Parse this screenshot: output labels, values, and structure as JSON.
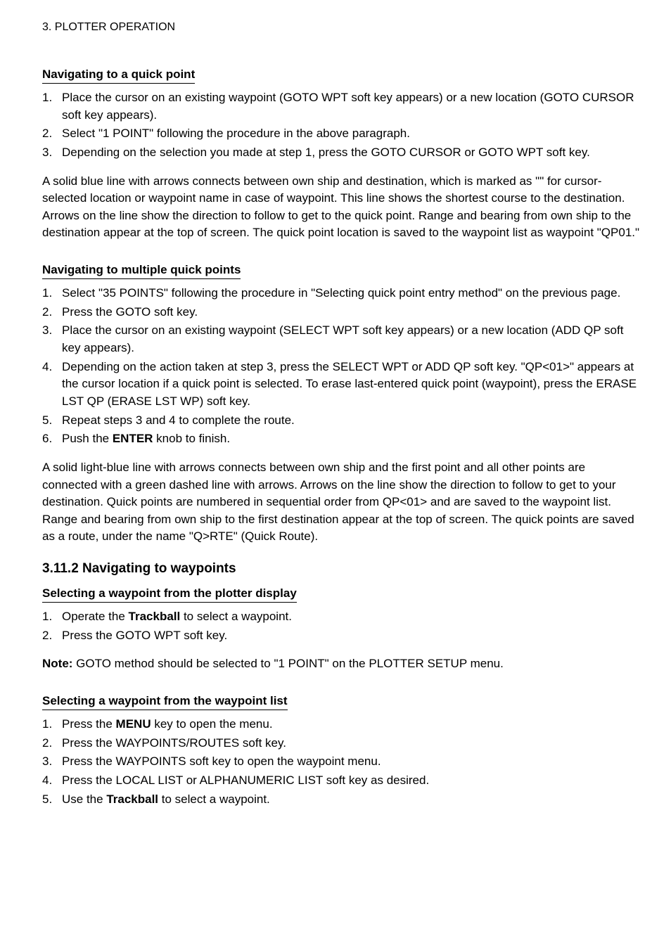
{
  "header": {
    "chapter": "3. PLOTTER OPERATION"
  },
  "sec1": {
    "heading": "Navigating to a quick point",
    "items": [
      "Place the cursor on an existing waypoint (GOTO WPT soft key appears) or a new location (GOTO CURSOR soft key appears).",
      "Select \"1 POINT\" following the procedure in the above paragraph.",
      "Depending on the selection you made at step 1, press the GOTO CURSOR or GOTO WPT soft key."
    ],
    "para": "A solid blue line with arrows connects between own ship and destination, which is marked as \"<QP01>\" for cursor-selected location or waypoint name in case of waypoint. This line shows the shortest course to the destination. Arrows on the line show the direction to follow to get to the quick point. Range and bearing from own ship to the destination appear at the top of screen. The quick point location is saved to the waypoint list as waypoint \"QP01.\""
  },
  "sec2": {
    "heading": "Navigating to multiple quick points",
    "items": [
      "Select \"35 POINTS\" following the procedure in \"Selecting quick point entry method\" on the previous page.",
      "Press the GOTO soft key.",
      "Place the cursor on an existing waypoint (SELECT WPT soft key appears) or a new location (ADD QP soft key appears).",
      "Depending on the action taken at step 3, press the SELECT WPT or ADD QP soft key. \"QP<01>\" appears at the cursor location if a quick point is selected. To erase last-entered quick point (waypoint), press the ERASE LST QP (ERASE LST WP) soft key.",
      "Repeat steps 3 and 4 to complete the route.",
      "Push the ENTER knob to finish."
    ],
    "para": "A solid light-blue line with arrows connects between own ship and the first point and all other points are connected with a green dashed line with arrows. Arrows on the line show the direction to follow to get to your destination. Quick points are numbered in sequential order from QP<01> and are saved to the waypoint list. Range and bearing from own ship to the first destination appear at the top of screen. The quick points are saved as a route, under the name \"Q>RTE\" (Quick Route)."
  },
  "sec3": {
    "title": "3.11.2 Navigating to waypoints",
    "sub1": {
      "heading": "Selecting a waypoint from the plotter display",
      "items": [
        "Operate the Trackball to select a waypoint.",
        "Press the GOTO WPT soft key."
      ],
      "note_label": "Note: ",
      "note_text": "GOTO method should be selected to \"1 POINT\" on the PLOTTER SETUP menu."
    },
    "sub2": {
      "heading": "Selecting a waypoint from the waypoint list",
      "items": [
        "Press the MENU key to open the menu.",
        "Press the WAYPOINTS/ROUTES soft key.",
        "Press the WAYPOINTS soft key to open the waypoint menu.",
        "Press the LOCAL LIST or ALPHANUMERIC LIST soft key as desired.",
        "Use the Trackball to select a waypoint."
      ]
    }
  },
  "boldWords": [
    "ENTER",
    "Trackball",
    "MENU"
  ]
}
